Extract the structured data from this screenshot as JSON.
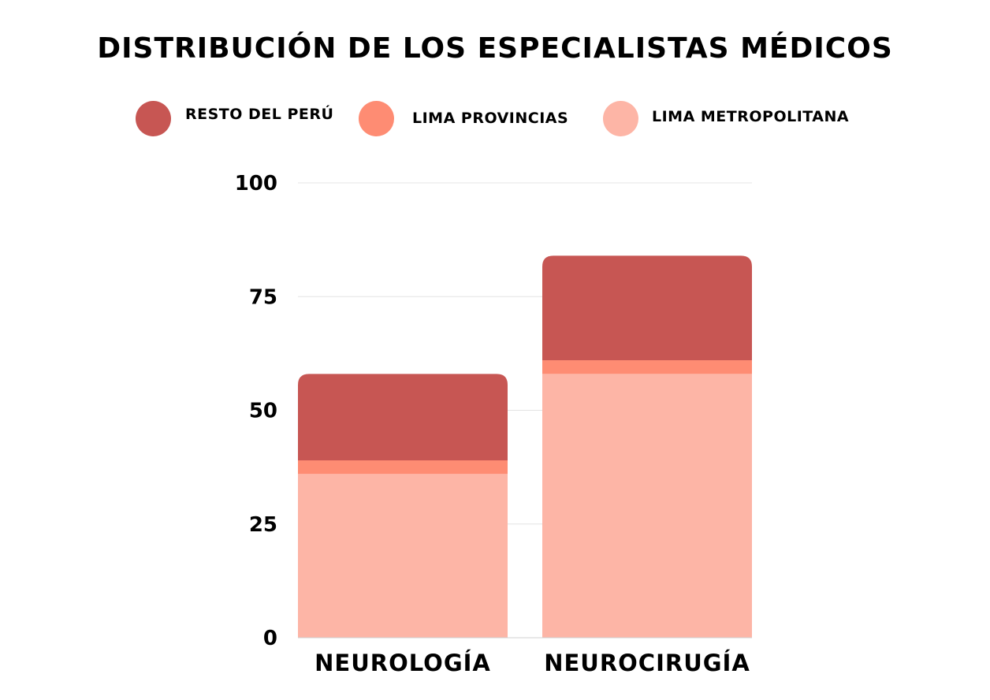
{
  "chart_data": {
    "type": "bar",
    "stacked": true,
    "title": "DISTRIBUCIÓN DE LOS ESPECIALISTAS MÉDICOS",
    "xlabel": "",
    "ylabel": "",
    "categories": [
      "NEUROLOGÍA",
      "NEUROCIRUGÍA"
    ],
    "series": [
      {
        "name": "LIMA METROPOLITANA",
        "color": "#FDB5A6",
        "values": [
          36,
          58
        ]
      },
      {
        "name": "LIMA PROVINCIAS",
        "color": "#FE8C73",
        "values": [
          3,
          3
        ]
      },
      {
        "name": "RESTO DEL PERÚ",
        "color": "#C75653",
        "values": [
          19,
          23
        ]
      }
    ],
    "ylim": [
      0,
      100
    ],
    "yticks": [
      "0",
      "25",
      "50",
      "75",
      "100"
    ],
    "ytick_values": [
      0,
      25,
      50,
      75,
      100
    ],
    "grid": true,
    "legend_position": "top",
    "legend": [
      {
        "label": "RESTO DEL PERÚ",
        "color": "#C75653"
      },
      {
        "label": "LIMA PROVINCIAS",
        "color": "#FE8C73"
      },
      {
        "label": "LIMA METROPOLITANA",
        "color": "#FDB5A6"
      }
    ]
  }
}
